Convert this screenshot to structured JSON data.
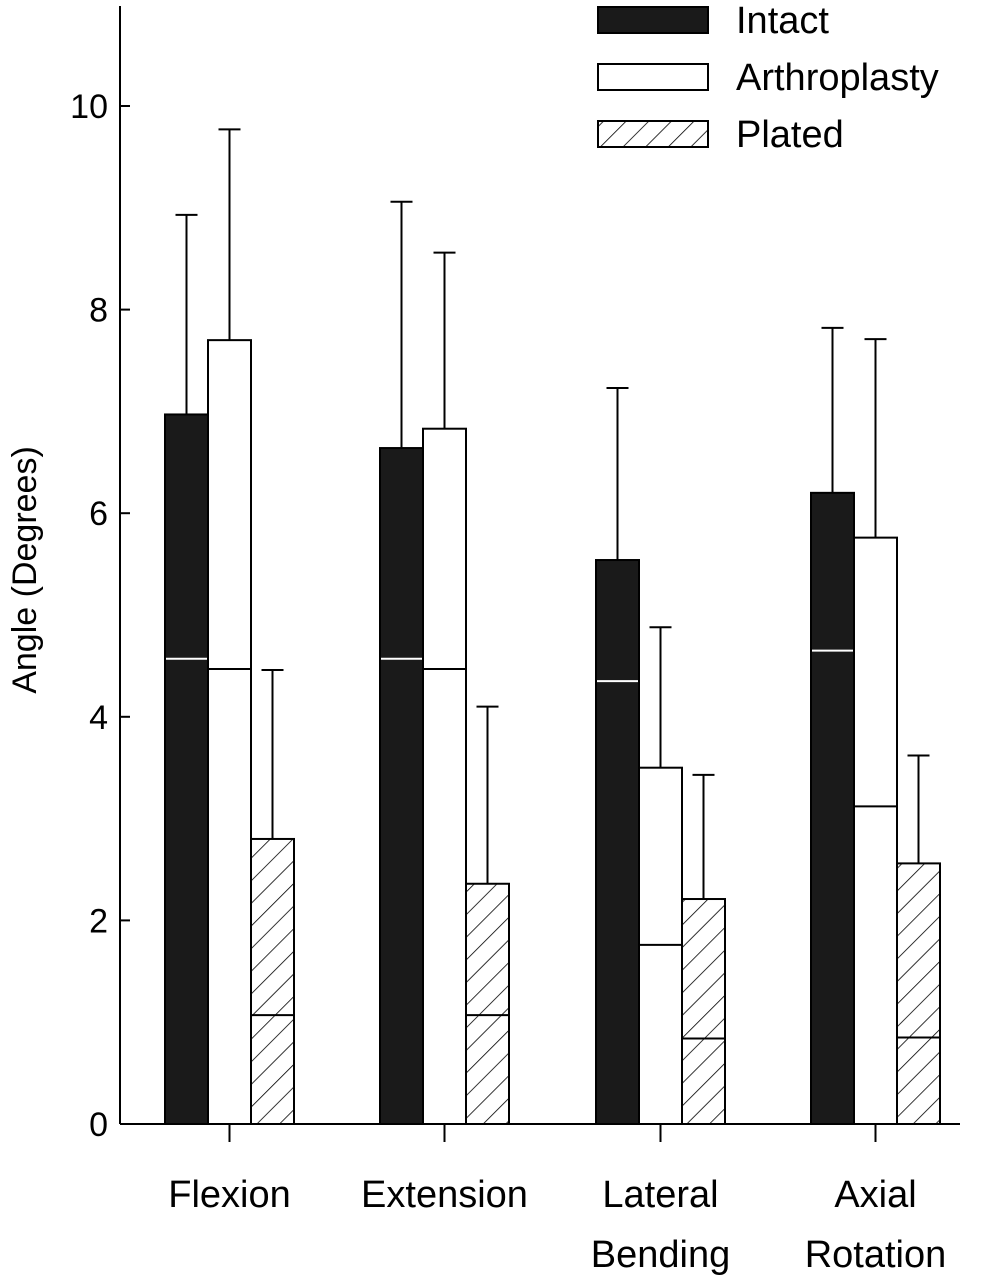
{
  "chart_data": {
    "type": "bar",
    "title": "",
    "xlabel": "",
    "ylabel": "Angle (Degrees)",
    "ylim": [
      0,
      11
    ],
    "yticks": [
      0,
      2,
      4,
      6,
      8,
      10
    ],
    "grid": false,
    "legend_position": "top-right",
    "categories": [
      {
        "lines": [
          "Flexion"
        ]
      },
      {
        "lines": [
          "Extension"
        ]
      },
      {
        "lines": [
          "Lateral",
          "Bending"
        ]
      },
      {
        "lines": [
          "Axial",
          "Rotation"
        ]
      }
    ],
    "series": [
      {
        "name": "Intact",
        "fill": "solid",
        "color": "#1a1a1a",
        "values": [
          6.97,
          6.64,
          5.54,
          6.2
        ],
        "error": [
          1.96,
          2.42,
          1.69,
          1.62
        ],
        "inner": [
          4.57,
          4.57,
          4.35,
          4.65
        ]
      },
      {
        "name": "Arthroplasty",
        "fill": "white",
        "color": "#ffffff",
        "values": [
          7.7,
          6.83,
          3.5,
          5.76
        ],
        "error": [
          2.07,
          1.73,
          1.38,
          1.95
        ],
        "inner": [
          4.47,
          4.47,
          1.76,
          3.12
        ]
      },
      {
        "name": "Plated",
        "fill": "hatched",
        "color": "#ffffff",
        "values": [
          2.8,
          2.36,
          2.21,
          2.56
        ],
        "error": [
          1.66,
          1.74,
          1.22,
          1.06
        ],
        "inner": [
          1.07,
          1.07,
          0.84,
          0.85
        ]
      }
    ]
  }
}
